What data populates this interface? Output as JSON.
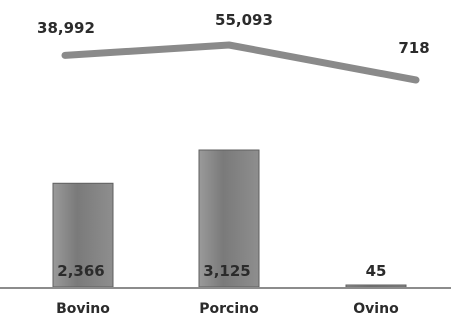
{
  "chart_data": {
    "type": "bar",
    "categories": [
      "Bovino",
      "Porcino",
      "Ovino"
    ],
    "series": [
      {
        "type": "bar",
        "values": [
          2366,
          3125,
          45
        ],
        "labels": [
          "2,366",
          "3,125",
          "45"
        ]
      },
      {
        "type": "line",
        "values": [
          38992,
          55093,
          718
        ],
        "labels": [
          "38,992",
          "55,093",
          "718"
        ]
      }
    ],
    "title": "",
    "xlabel": "",
    "ylabel": "",
    "colors": {
      "bar": "#7d7d7d",
      "line": "#8a8a8a",
      "axis": "#8c8c8c",
      "text": "#2b2b2b"
    },
    "grid": false,
    "legend": "none"
  }
}
